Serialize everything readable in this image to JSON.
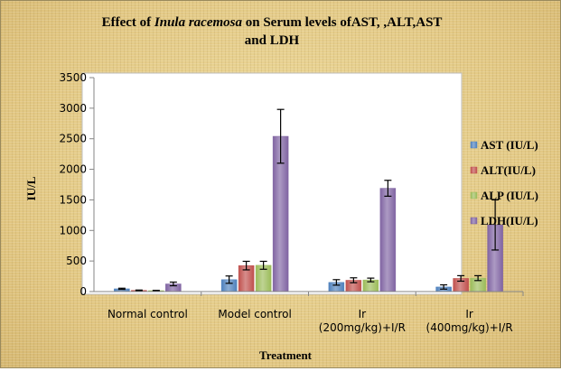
{
  "chart_data": {
    "type": "bar",
    "title_part1": "Effect of ",
    "title_italic": "Inula racemosa",
    "title_part2": " on Serum levels ofAST, ,ALT,AST",
    "title_line2": "and LDH",
    "xlabel": "Treatment",
    "ylabel": "IU/L",
    "ylim": [
      0,
      3500
    ],
    "yticks": [
      "0",
      "500",
      "1000",
      "1500",
      "2000",
      "2500",
      "3000",
      "3500"
    ],
    "grid": false,
    "legend_position": "right",
    "categories": [
      [
        "Normal control"
      ],
      [
        "Model control"
      ],
      [
        "Ir",
        "(200mg/kg)+I/R"
      ],
      [
        "Ir",
        "(400mg/kg)+I/R"
      ]
    ],
    "series": [
      {
        "name": "AST (IU/L)",
        "color": "#4f81bd",
        "values": [
          45,
          195,
          150,
          75
        ],
        "errors": [
          10,
          60,
          45,
          35
        ]
      },
      {
        "name": "ALT(IU/L)",
        "color": "#c0504d",
        "values": [
          20,
          425,
          185,
          215
        ],
        "errors": [
          5,
          70,
          40,
          45
        ]
      },
      {
        "name": "ALP (IU/L)",
        "color": "#9bbb59",
        "values": [
          15,
          430,
          190,
          220
        ],
        "errors": [
          5,
          65,
          30,
          40
        ]
      },
      {
        "name": "LDH(IU/L)",
        "color": "#8064a2",
        "values": [
          125,
          2540,
          1690,
          1090
        ],
        "errors": [
          30,
          440,
          130,
          410
        ]
      }
    ]
  }
}
